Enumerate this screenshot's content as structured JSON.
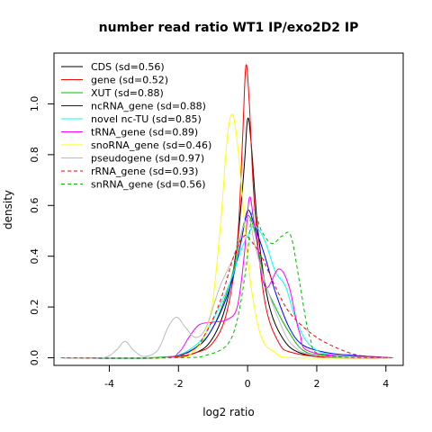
{
  "chart_data": {
    "type": "line",
    "title": "number read ratio WT1 IP/exo2D2 IP",
    "xlabel": "log2 ratio",
    "ylabel": "density",
    "xlim": [
      -5.6,
      4.5
    ],
    "ylim": [
      -0.03,
      1.2
    ],
    "xticks": [
      -4,
      -2,
      0,
      2,
      4
    ],
    "yticks": [
      0.0,
      0.2,
      0.4,
      0.6,
      0.8,
      1.0
    ],
    "legend_position": "top-left",
    "grid": false,
    "series": [
      {
        "name": "CDS (sd=0.56)",
        "color": "#000000",
        "dash": false,
        "points": [
          [
            -5.4,
            0
          ],
          [
            -2.5,
            0
          ],
          [
            -1.5,
            0.02
          ],
          [
            -1.0,
            0.08
          ],
          [
            -0.6,
            0.22
          ],
          [
            -0.3,
            0.45
          ],
          [
            -0.1,
            0.75
          ],
          [
            0.0,
            0.94
          ],
          [
            0.1,
            0.85
          ],
          [
            0.3,
            0.5
          ],
          [
            0.6,
            0.22
          ],
          [
            1.0,
            0.08
          ],
          [
            1.5,
            0.02
          ],
          [
            2.5,
            0
          ],
          [
            4.2,
            0
          ]
        ]
      },
      {
        "name": "gene (sd=0.52)",
        "color": "#ff0000",
        "dash": false,
        "points": [
          [
            -5.4,
            0
          ],
          [
            -2.5,
            0
          ],
          [
            -1.5,
            0.02
          ],
          [
            -1.0,
            0.06
          ],
          [
            -0.6,
            0.18
          ],
          [
            -0.3,
            0.45
          ],
          [
            -0.15,
            0.85
          ],
          [
            -0.05,
            1.15
          ],
          [
            0.05,
            1.0
          ],
          [
            0.2,
            0.6
          ],
          [
            0.5,
            0.22
          ],
          [
            0.9,
            0.06
          ],
          [
            1.3,
            0.02
          ],
          [
            2.5,
            0
          ],
          [
            4.2,
            0
          ]
        ]
      },
      {
        "name": "XUT (sd=0.88)",
        "color": "#00bb00",
        "dash": false,
        "points": [
          [
            -5.4,
            0
          ],
          [
            -3.0,
            0
          ],
          [
            -2.0,
            0.01
          ],
          [
            -1.5,
            0.04
          ],
          [
            -1.0,
            0.12
          ],
          [
            -0.5,
            0.3
          ],
          [
            -0.2,
            0.48
          ],
          [
            0.0,
            0.56
          ],
          [
            0.2,
            0.5
          ],
          [
            0.5,
            0.3
          ],
          [
            0.8,
            0.2
          ],
          [
            1.2,
            0.1
          ],
          [
            1.6,
            0.03
          ],
          [
            2.2,
            0.01
          ],
          [
            4.2,
            0
          ]
        ]
      },
      {
        "name": "ncRNA_gene (sd=0.88)",
        "color": "#0000ff",
        "dash": false,
        "points": [
          [
            -5.4,
            0
          ],
          [
            -2.5,
            0
          ],
          [
            -1.5,
            0.04
          ],
          [
            -1.0,
            0.12
          ],
          [
            -0.5,
            0.28
          ],
          [
            -0.2,
            0.45
          ],
          [
            0.0,
            0.58
          ],
          [
            0.2,
            0.52
          ],
          [
            0.5,
            0.4
          ],
          [
            0.8,
            0.26
          ],
          [
            1.2,
            0.12
          ],
          [
            1.6,
            0.05
          ],
          [
            2.3,
            0.02
          ],
          [
            3.0,
            0.01
          ],
          [
            4.2,
            0
          ]
        ]
      },
      {
        "name": "novel nc-TU (sd=0.85)",
        "color": "#00ffff",
        "dash": false,
        "points": [
          [
            -5.4,
            0
          ],
          [
            -2.5,
            0
          ],
          [
            -1.5,
            0.05
          ],
          [
            -1.0,
            0.15
          ],
          [
            -0.5,
            0.3
          ],
          [
            -0.2,
            0.42
          ],
          [
            0.0,
            0.48
          ],
          [
            0.2,
            0.52
          ],
          [
            0.5,
            0.46
          ],
          [
            0.8,
            0.34
          ],
          [
            1.1,
            0.28
          ],
          [
            1.4,
            0.15
          ],
          [
            1.8,
            0.05
          ],
          [
            2.5,
            0.01
          ],
          [
            4.2,
            0
          ]
        ]
      },
      {
        "name": "tRNA_gene (sd=0.89)",
        "color": "#ff00ff",
        "dash": false,
        "points": [
          [
            -5.4,
            0
          ],
          [
            -2.5,
            0
          ],
          [
            -2.0,
            0.02
          ],
          [
            -1.7,
            0.08
          ],
          [
            -1.4,
            0.13
          ],
          [
            -1.0,
            0.14
          ],
          [
            -0.6,
            0.15
          ],
          [
            -0.3,
            0.2
          ],
          [
            -0.1,
            0.4
          ],
          [
            0.05,
            0.63
          ],
          [
            0.2,
            0.52
          ],
          [
            0.5,
            0.28
          ],
          [
            0.9,
            0.35
          ],
          [
            1.2,
            0.28
          ],
          [
            1.5,
            0.1
          ],
          [
            1.9,
            0.02
          ],
          [
            4.2,
            0
          ]
        ]
      },
      {
        "name": "snoRNA_gene (sd=0.46)",
        "color": "#ffff00",
        "dash": false,
        "points": [
          [
            -5.4,
            0
          ],
          [
            -2.3,
            0
          ],
          [
            -1.6,
            0.02
          ],
          [
            -1.1,
            0.15
          ],
          [
            -0.8,
            0.5
          ],
          [
            -0.6,
            0.85
          ],
          [
            -0.45,
            0.96
          ],
          [
            -0.3,
            0.85
          ],
          [
            -0.1,
            0.55
          ],
          [
            0.1,
            0.28
          ],
          [
            0.4,
            0.08
          ],
          [
            0.8,
            0.02
          ],
          [
            1.3,
            0
          ],
          [
            4.2,
            0
          ]
        ]
      },
      {
        "name": "pseudogene (sd=0.97)",
        "color": "#bbbbbb",
        "dash": false,
        "points": [
          [
            -5.4,
            0
          ],
          [
            -4.2,
            0
          ],
          [
            -3.8,
            0.03
          ],
          [
            -3.55,
            0.065
          ],
          [
            -3.3,
            0.03
          ],
          [
            -3.0,
            0.005
          ],
          [
            -2.6,
            0.03
          ],
          [
            -2.3,
            0.12
          ],
          [
            -2.05,
            0.16
          ],
          [
            -1.8,
            0.12
          ],
          [
            -1.5,
            0.08
          ],
          [
            -1.2,
            0.12
          ],
          [
            -0.8,
            0.28
          ],
          [
            -0.4,
            0.4
          ],
          [
            0.0,
            0.55
          ],
          [
            0.2,
            0.45
          ],
          [
            0.5,
            0.3
          ],
          [
            0.9,
            0.15
          ],
          [
            1.3,
            0.05
          ],
          [
            2.0,
            0.01
          ],
          [
            4.2,
            0
          ]
        ]
      },
      {
        "name": "rRNA_gene (sd=0.93)",
        "color": "#ff0000",
        "dash": true,
        "points": [
          [
            -5.4,
            0
          ],
          [
            -2.5,
            0
          ],
          [
            -1.6,
            0.03
          ],
          [
            -1.2,
            0.1
          ],
          [
            -0.8,
            0.22
          ],
          [
            -0.4,
            0.4
          ],
          [
            -0.1,
            0.48
          ],
          [
            0.1,
            0.46
          ],
          [
            0.4,
            0.4
          ],
          [
            0.8,
            0.28
          ],
          [
            1.2,
            0.18
          ],
          [
            1.8,
            0.1
          ],
          [
            2.4,
            0.05
          ],
          [
            3.2,
            0.01
          ],
          [
            4.2,
            0
          ]
        ]
      },
      {
        "name": "snRNA_gene (sd=0.56)",
        "color": "#00bb00",
        "dash": true,
        "points": [
          [
            -5.4,
            0
          ],
          [
            -2.0,
            0
          ],
          [
            -1.2,
            0.01
          ],
          [
            -0.6,
            0.05
          ],
          [
            -0.3,
            0.15
          ],
          [
            -0.05,
            0.35
          ],
          [
            0.15,
            0.58
          ],
          [
            0.4,
            0.5
          ],
          [
            0.7,
            0.45
          ],
          [
            1.0,
            0.48
          ],
          [
            1.25,
            0.48
          ],
          [
            1.5,
            0.3
          ],
          [
            1.8,
            0.08
          ],
          [
            2.2,
            0.01
          ],
          [
            4.2,
            0
          ]
        ]
      }
    ]
  }
}
